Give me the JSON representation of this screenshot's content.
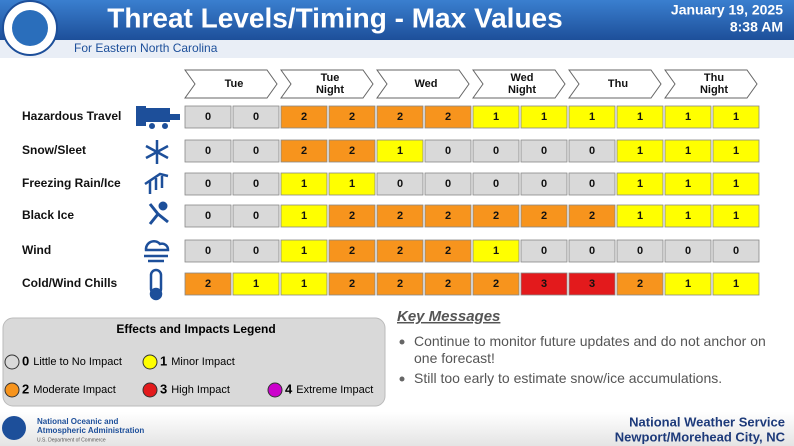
{
  "header": {
    "title": "Threat Levels/Timing - Max Values",
    "date": "January 19, 2025",
    "time": "8:38 AM",
    "subtitle": "For Eastern North Carolina"
  },
  "periods": [
    "Tue",
    "Tue Night",
    "Wed",
    "Wed Night",
    "Thu",
    "Thu Night"
  ],
  "rows": [
    {
      "label": "Hazardous Travel",
      "values": [
        0,
        0,
        2,
        2,
        2,
        2,
        1,
        1,
        1,
        1,
        1,
        1
      ]
    },
    {
      "label": "Snow/Sleet",
      "values": [
        0,
        0,
        2,
        2,
        1,
        0,
        0,
        0,
        0,
        1,
        1,
        1
      ]
    },
    {
      "label": "Freezing Rain/Ice",
      "values": [
        0,
        0,
        1,
        1,
        0,
        0,
        0,
        0,
        0,
        1,
        1,
        1
      ]
    },
    {
      "label": "Black Ice",
      "values": [
        0,
        0,
        1,
        2,
        2,
        2,
        2,
        2,
        2,
        1,
        1,
        1
      ]
    },
    {
      "label": "Wind",
      "values": [
        0,
        0,
        1,
        2,
        2,
        2,
        1,
        0,
        0,
        0,
        0,
        0
      ]
    },
    {
      "label": "Cold/Wind Chills",
      "values": [
        2,
        1,
        1,
        2,
        2,
        2,
        2,
        3,
        3,
        2,
        1,
        1
      ]
    }
  ],
  "legend": {
    "title": "Effects and Impacts Legend",
    "levels": [
      {
        "value": 0,
        "label": "Little to No Impact",
        "color": "#d9d9d9"
      },
      {
        "value": 1,
        "label": "Minor Impact",
        "color": "#ffff00"
      },
      {
        "value": 2,
        "label": "Moderate Impact",
        "color": "#f7941d"
      },
      {
        "value": 3,
        "label": "High Impact",
        "color": "#e31a1c"
      },
      {
        "value": 4,
        "label": "Extreme Impact",
        "color": "#cc00cc"
      }
    ]
  },
  "key_messages": {
    "title": "Key Messages",
    "items": [
      "Continue to monitor future updates and do not anchor on one forecast!",
      "Still too early to estimate snow/ice accumulations."
    ]
  },
  "footer": {
    "agency_line1": "National Oceanic and",
    "agency_line2": "Atmospheric Administration",
    "agency_line3": "U.S. Department of Commerce",
    "office_line1": "National Weather Service",
    "office_line2": "Newport/Morehead City, NC"
  }
}
